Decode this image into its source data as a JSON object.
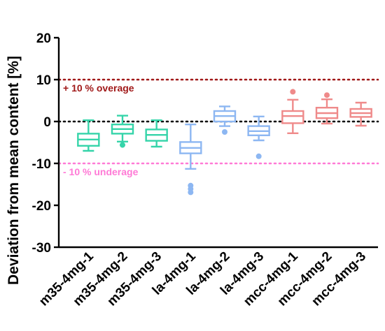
{
  "chart_data": {
    "type": "box",
    "title": "",
    "xlabel": "",
    "ylabel": "Deviation from mean content [%]",
    "ylim": [
      -30,
      20
    ],
    "yticks": [
      -30,
      -20,
      -10,
      0,
      10,
      20
    ],
    "grid": false,
    "reference_lines": [
      {
        "y": 10,
        "label": "+ 10 % overage",
        "color": "#a01818",
        "style": "dotted"
      },
      {
        "y": 0,
        "label": "",
        "color": "#000000",
        "style": "dotted"
      },
      {
        "y": -10,
        "label": "- 10 % underage",
        "color": "#ff7ad6",
        "style": "dotted"
      }
    ],
    "categories": [
      "m35-4mg-1",
      "m35-4mg-2",
      "m35-4mg-3",
      "la-4mg-1",
      "la-4mg-2",
      "la-4mg-3",
      "mcc-4mg-1",
      "mcc-4mg-2",
      "mcc-4mg-3"
    ],
    "boxes": [
      {
        "name": "m35-4mg-1",
        "color": "#35d4a9",
        "whisker_low": -7.0,
        "q1": -5.8,
        "median": -4.3,
        "q3": -2.9,
        "whisker_high": 0.3,
        "outliers": []
      },
      {
        "name": "m35-4mg-2",
        "color": "#35d4a9",
        "whisker_low": -4.8,
        "q1": -2.9,
        "median": -1.8,
        "q3": -0.7,
        "whisker_high": 1.4,
        "outliers": [
          -5.6
        ]
      },
      {
        "name": "m35-4mg-3",
        "color": "#35d4a9",
        "whisker_low": -6.0,
        "q1": -4.6,
        "median": -3.2,
        "q3": -1.9,
        "whisker_high": 0.3,
        "outliers": []
      },
      {
        "name": "la-4mg-1",
        "color": "#8db7f2",
        "whisker_low": -11.3,
        "q1": -7.6,
        "median": -6.3,
        "q3": -4.9,
        "whisker_high": -0.7,
        "outliers": [
          -15.3,
          -16.1,
          -16.9
        ]
      },
      {
        "name": "la-4mg-2",
        "color": "#8db7f2",
        "whisker_low": -1.1,
        "q1": 0.0,
        "median": 1.3,
        "q3": 2.5,
        "whisker_high": 3.6,
        "outliers": [
          -2.5
        ]
      },
      {
        "name": "la-4mg-3",
        "color": "#8db7f2",
        "whisker_low": -4.5,
        "q1": -3.3,
        "median": -2.3,
        "q3": -1.1,
        "whisker_high": 1.2,
        "outliers": [
          -8.3
        ]
      },
      {
        "name": "mcc-4mg-1",
        "color": "#ef8a8a",
        "whisker_low": -2.8,
        "q1": -0.4,
        "median": 1.3,
        "q3": 2.5,
        "whisker_high": 5.2,
        "outliers": [
          7.1
        ]
      },
      {
        "name": "mcc-4mg-2",
        "color": "#ef8a8a",
        "whisker_low": -0.5,
        "q1": 0.8,
        "median": 2.0,
        "q3": 3.3,
        "whisker_high": 5.3,
        "outliers": [
          6.3
        ]
      },
      {
        "name": "mcc-4mg-3",
        "color": "#ef8a8a",
        "whisker_low": -1.0,
        "q1": 1.1,
        "median": 2.0,
        "q3": 3.0,
        "whisker_high": 4.5,
        "outliers": []
      }
    ]
  }
}
